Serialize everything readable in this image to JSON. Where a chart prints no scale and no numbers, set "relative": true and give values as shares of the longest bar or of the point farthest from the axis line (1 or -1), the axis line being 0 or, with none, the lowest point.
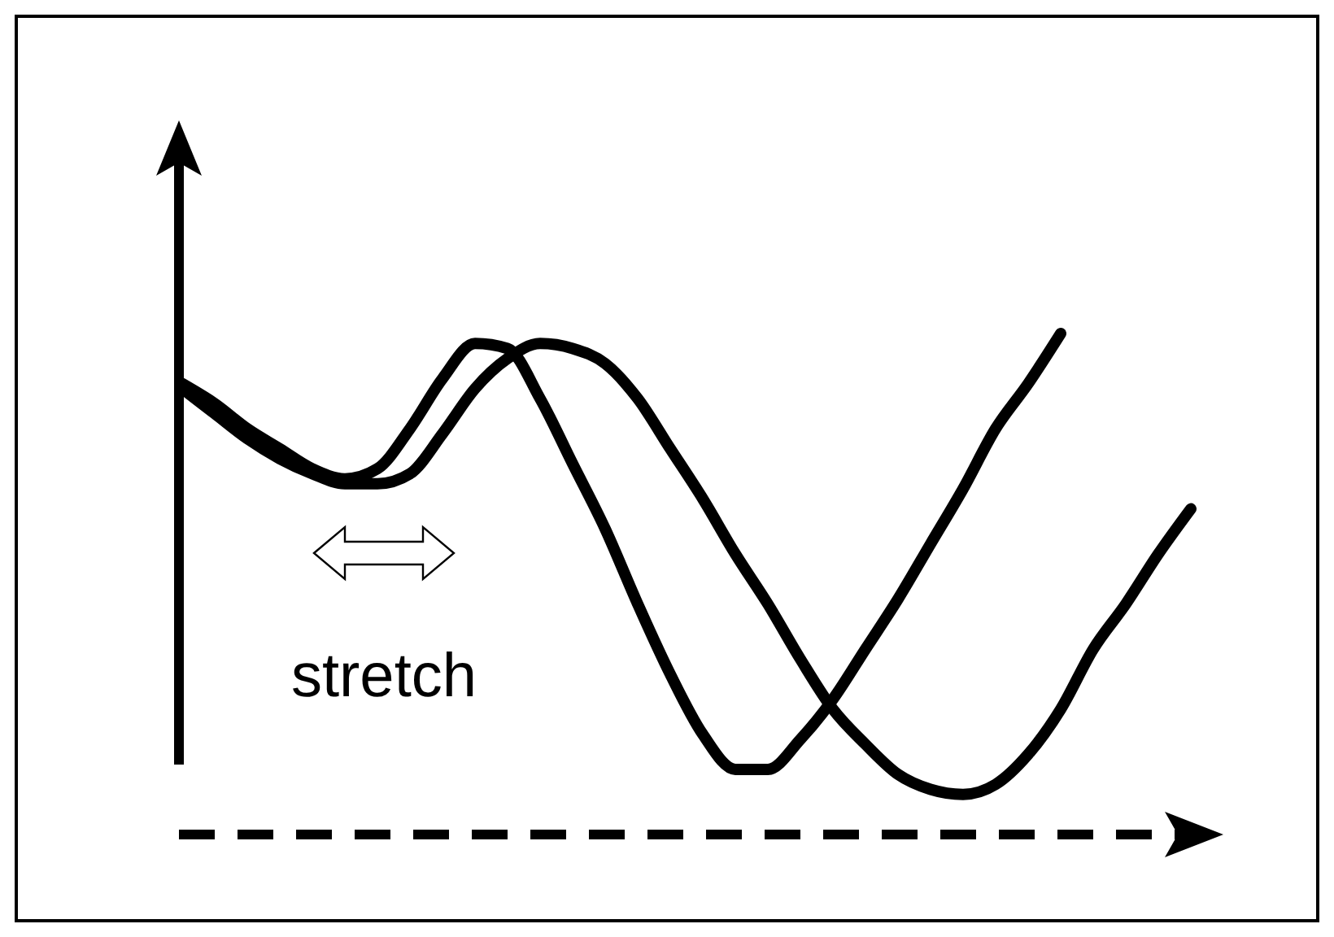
{
  "chart_data": {
    "type": "line",
    "relative": true,
    "categories": [
      null,
      null,
      null,
      null,
      null,
      null,
      null,
      null,
      null,
      null,
      null,
      null,
      null,
      null,
      null,
      null,
      null,
      null,
      null,
      null,
      null,
      null,
      null,
      null,
      null,
      null,
      null,
      null,
      null,
      null,
      null,
      null
    ],
    "series": [
      {
        "color": "#000000",
        "values": [
          0.9,
          0.86,
          0.81,
          0.77,
          0.73,
          0.71,
          0.73,
          0.81,
          0.91,
          0.98,
          0.97,
          0.87,
          0.74,
          0.61,
          0.46,
          0.32,
          0.2,
          0.13,
          0.13,
          0.19,
          0.27,
          0.37,
          0.47,
          0.58,
          0.69,
          0.81,
          0.9,
          1,
          null,
          null,
          null,
          null
        ]
      },
      {
        "color": "#000000",
        "values": [
          0.89,
          0.84,
          0.79,
          0.75,
          0.72,
          0.7,
          0.7,
          0.72,
          0.8,
          0.89,
          0.95,
          0.98,
          0.97,
          0.94,
          0.87,
          0.77,
          0.67,
          0.56,
          0.46,
          0.35,
          0.25,
          0.18,
          0.12,
          0.09,
          0.08,
          0.1,
          0.16,
          0.25,
          0.37,
          0.46,
          0.56,
          0.65
        ]
      }
    ],
    "annotations": [
      "stretch"
    ]
  }
}
